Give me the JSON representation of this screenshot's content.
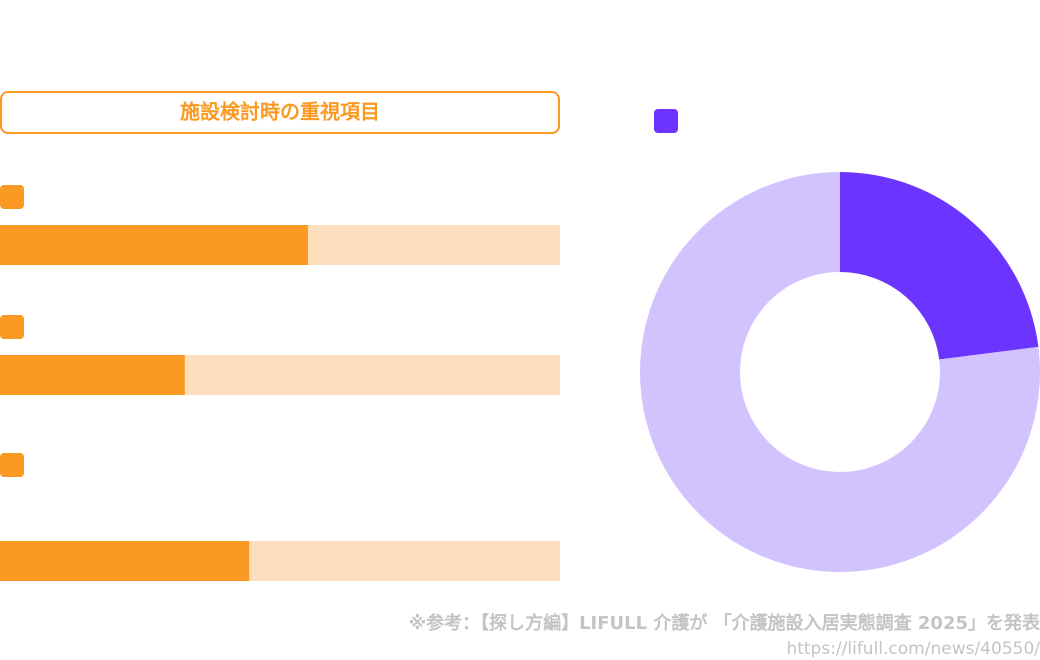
{
  "chart_data": [
    {
      "type": "bar",
      "title": "施設検討時の重視項目",
      "categories": [
        null,
        null,
        null
      ],
      "values": [
        55,
        33,
        44.5
      ],
      "color": "#fb9a22",
      "track_color": "#fedfbd",
      "xlim": [
        0,
        100
      ]
    },
    {
      "type": "pie",
      "values": [
        23,
        77
      ],
      "colors": [
        "#6b35ff",
        "#d2c3ff"
      ]
    }
  ],
  "footnote": "※参考：【探し方編】LIFULL 介護が 「介護施設入居実態調査 2025」を発表",
  "source_url": "https://lifull.com/news/40550/"
}
